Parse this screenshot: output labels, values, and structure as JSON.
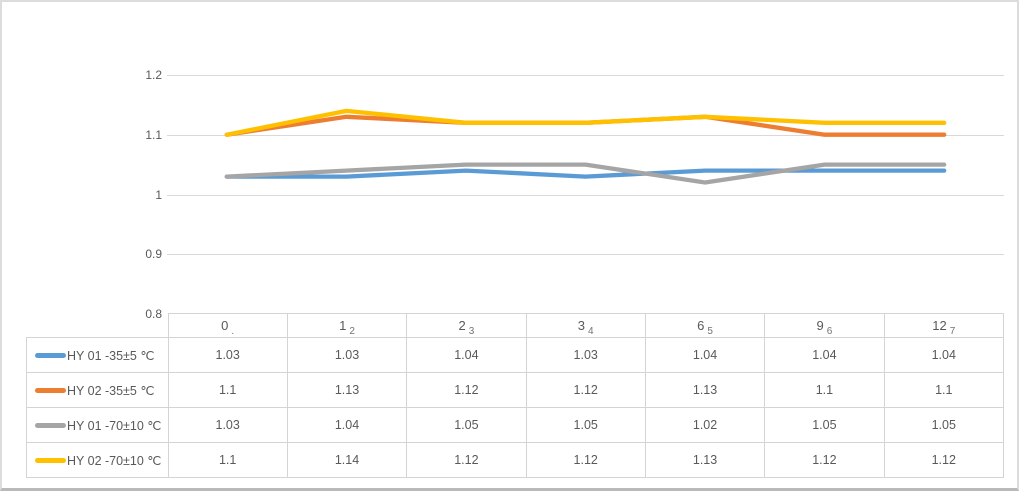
{
  "chart_data": {
    "type": "line",
    "title": "",
    "xlabel": "",
    "ylabel": "",
    "categories": [
      "0",
      "1",
      "2",
      "3",
      "6",
      "9",
      "12"
    ],
    "category_overlay_labels": [
      ".",
      "2",
      "3",
      "4",
      "5",
      "6",
      "7"
    ],
    "series": [
      {
        "name": "HY 01 -35±5 ℃",
        "color": "#5B9BD5",
        "values": [
          1.03,
          1.03,
          1.04,
          1.03,
          1.04,
          1.04,
          1.04
        ]
      },
      {
        "name": "HY 02 -35±5 ℃",
        "color": "#ED7D31",
        "values": [
          1.1,
          1.13,
          1.12,
          1.12,
          1.13,
          1.1,
          1.1
        ]
      },
      {
        "name": "HY 01 -70±10 ℃",
        "color": "#A5A5A5",
        "values": [
          1.03,
          1.04,
          1.05,
          1.05,
          1.02,
          1.05,
          1.05
        ]
      },
      {
        "name": "HY 02 -70±10 ℃",
        "color": "#FFC000",
        "values": [
          1.1,
          1.14,
          1.12,
          1.12,
          1.13,
          1.12,
          1.12
        ]
      }
    ],
    "y_ticks": [
      "1.2",
      "1.1",
      "1",
      "0.9",
      "0.8"
    ],
    "ylim": [
      0.8,
      1.2
    ],
    "grid": true,
    "legend_position": "table-left",
    "line_width": 4.3
  },
  "style_colors": {
    "gridline": "#d9d9d9",
    "table_border": "#d4d4d4",
    "axis_text": "#595959",
    "cell_text": "#595959",
    "frame_border": "#dcdcdc",
    "frame_bottom_border": "#b9b9b9",
    "background": "#ffffff"
  }
}
